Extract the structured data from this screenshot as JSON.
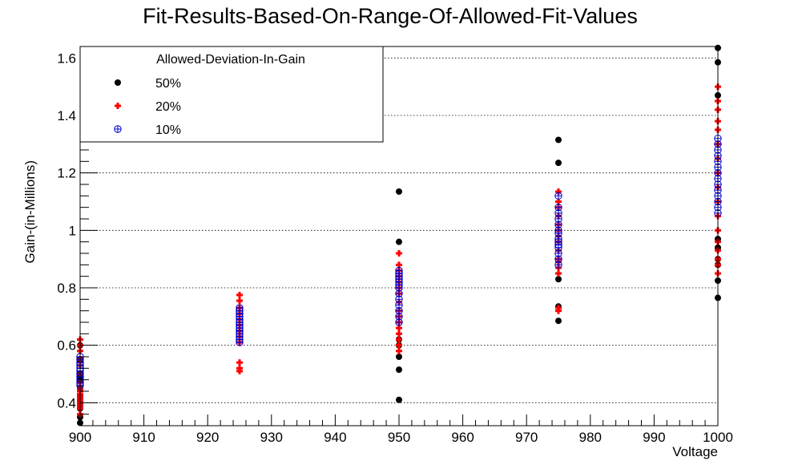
{
  "chart_data": {
    "type": "scatter",
    "title": "Fit-Results-Based-On-Range-Of-Allowed-Fit-Values",
    "xlabel": "Voltage",
    "ylabel": "Gain-(in-Millions)",
    "xlim": [
      900,
      1000
    ],
    "ylim": [
      0.32,
      1.64
    ],
    "x_ticks": [
      900,
      910,
      920,
      930,
      940,
      950,
      960,
      970,
      980,
      990,
      1000
    ],
    "x_tick_labels": [
      "900",
      "910",
      "920",
      "930",
      "940",
      "950",
      "960",
      "970",
      "980",
      "990",
      "1000"
    ],
    "y_ticks": [
      0.4,
      0.6,
      0.8,
      1.0,
      1.2,
      1.4,
      1.6
    ],
    "y_tick_labels": [
      "0.4",
      "0.6",
      "0.8",
      "1",
      "1.2",
      "1.4",
      "1.6"
    ],
    "grid": "horizontal",
    "legend": {
      "title": "Allowed-Deviation-In-Gain",
      "placement": "top-left"
    },
    "series": [
      {
        "name": "50%",
        "color": "#000000",
        "marker": "filled-circle",
        "points": [
          [
            900,
            0.33
          ],
          [
            900,
            0.35
          ],
          [
            900,
            0.38
          ],
          [
            900,
            0.4
          ],
          [
            900,
            0.42
          ],
          [
            900,
            0.45
          ],
          [
            900,
            0.48
          ],
          [
            900,
            0.5
          ],
          [
            900,
            0.55
          ],
          [
            900,
            0.6
          ],
          [
            950,
            0.41
          ],
          [
            950,
            0.515
          ],
          [
            950,
            0.56
          ],
          [
            950,
            0.6
          ],
          [
            950,
            0.62
          ],
          [
            950,
            0.96
          ],
          [
            950,
            1.135
          ],
          [
            975,
            0.685
          ],
          [
            975,
            0.735
          ],
          [
            975,
            0.83
          ],
          [
            975,
            1.235
          ],
          [
            975,
            1.315
          ],
          [
            1000,
            0.765
          ],
          [
            1000,
            0.825
          ],
          [
            1000,
            0.88
          ],
          [
            1000,
            0.9
          ],
          [
            1000,
            0.94
          ],
          [
            1000,
            0.97
          ],
          [
            1000,
            1.47
          ],
          [
            1000,
            1.585
          ],
          [
            1000,
            1.635
          ]
        ]
      },
      {
        "name": "20%",
        "color": "#ff0000",
        "marker": "plus",
        "points": [
          [
            900,
            0.36
          ],
          [
            900,
            0.38
          ],
          [
            900,
            0.39
          ],
          [
            900,
            0.4
          ],
          [
            900,
            0.41
          ],
          [
            900,
            0.42
          ],
          [
            900,
            0.43
          ],
          [
            900,
            0.44
          ],
          [
            900,
            0.45
          ],
          [
            900,
            0.47
          ],
          [
            900,
            0.5
          ],
          [
            900,
            0.53
          ],
          [
            900,
            0.55
          ],
          [
            900,
            0.58
          ],
          [
            900,
            0.6
          ],
          [
            900,
            0.62
          ],
          [
            925,
            0.51
          ],
          [
            925,
            0.52
          ],
          [
            925,
            0.54
          ],
          [
            925,
            0.61
          ],
          [
            925,
            0.63
          ],
          [
            925,
            0.65
          ],
          [
            925,
            0.67
          ],
          [
            925,
            0.69
          ],
          [
            925,
            0.71
          ],
          [
            925,
            0.73
          ],
          [
            925,
            0.755
          ],
          [
            925,
            0.775
          ],
          [
            950,
            0.58
          ],
          [
            950,
            0.6
          ],
          [
            950,
            0.62
          ],
          [
            950,
            0.64
          ],
          [
            950,
            0.66
          ],
          [
            950,
            0.68
          ],
          [
            950,
            0.7
          ],
          [
            950,
            0.72
          ],
          [
            950,
            0.75
          ],
          [
            950,
            0.78
          ],
          [
            950,
            0.8
          ],
          [
            950,
            0.82
          ],
          [
            950,
            0.84
          ],
          [
            950,
            0.86
          ],
          [
            950,
            0.88
          ],
          [
            950,
            0.92
          ],
          [
            975,
            0.72
          ],
          [
            975,
            0.73
          ],
          [
            975,
            0.85
          ],
          [
            975,
            0.87
          ],
          [
            975,
            0.89
          ],
          [
            975,
            0.9
          ],
          [
            975,
            0.93
          ],
          [
            975,
            0.96
          ],
          [
            975,
            0.98
          ],
          [
            975,
            1.0
          ],
          [
            975,
            1.02
          ],
          [
            975,
            1.05
          ],
          [
            975,
            1.08
          ],
          [
            975,
            1.1
          ],
          [
            975,
            1.135
          ],
          [
            1000,
            0.85
          ],
          [
            1000,
            0.88
          ],
          [
            1000,
            0.9
          ],
          [
            1000,
            0.93
          ],
          [
            1000,
            0.96
          ],
          [
            1000,
            1.0
          ],
          [
            1000,
            1.05
          ],
          [
            1000,
            1.1
          ],
          [
            1000,
            1.15
          ],
          [
            1000,
            1.2
          ],
          [
            1000,
            1.25
          ],
          [
            1000,
            1.3
          ],
          [
            1000,
            1.35
          ],
          [
            1000,
            1.38
          ],
          [
            1000,
            1.42
          ],
          [
            1000,
            1.45
          ],
          [
            1000,
            1.5
          ]
        ]
      },
      {
        "name": "10%",
        "color": "#0000cc",
        "marker": "circle-plus",
        "points": [
          [
            900,
            0.46
          ],
          [
            900,
            0.47
          ],
          [
            900,
            0.48
          ],
          [
            900,
            0.49
          ],
          [
            900,
            0.5
          ],
          [
            900,
            0.51
          ],
          [
            900,
            0.52
          ],
          [
            900,
            0.53
          ],
          [
            900,
            0.54
          ],
          [
            900,
            0.55
          ],
          [
            900,
            0.56
          ],
          [
            925,
            0.61
          ],
          [
            925,
            0.62
          ],
          [
            925,
            0.63
          ],
          [
            925,
            0.64
          ],
          [
            925,
            0.65
          ],
          [
            925,
            0.66
          ],
          [
            925,
            0.67
          ],
          [
            925,
            0.68
          ],
          [
            925,
            0.69
          ],
          [
            925,
            0.7
          ],
          [
            925,
            0.71
          ],
          [
            925,
            0.72
          ],
          [
            925,
            0.73
          ],
          [
            950,
            0.68
          ],
          [
            950,
            0.7
          ],
          [
            950,
            0.72
          ],
          [
            950,
            0.74
          ],
          [
            950,
            0.76
          ],
          [
            950,
            0.78
          ],
          [
            950,
            0.8
          ],
          [
            950,
            0.81
          ],
          [
            950,
            0.82
          ],
          [
            950,
            0.83
          ],
          [
            950,
            0.84
          ],
          [
            950,
            0.85
          ],
          [
            950,
            0.86
          ],
          [
            975,
            0.88
          ],
          [
            975,
            0.9
          ],
          [
            975,
            0.92
          ],
          [
            975,
            0.94
          ],
          [
            975,
            0.95
          ],
          [
            975,
            0.96
          ],
          [
            975,
            0.97
          ],
          [
            975,
            0.99
          ],
          [
            975,
            1.0
          ],
          [
            975,
            1.02
          ],
          [
            975,
            1.04
          ],
          [
            975,
            1.06
          ],
          [
            975,
            1.08
          ],
          [
            975,
            1.12
          ],
          [
            1000,
            1.06
          ],
          [
            1000,
            1.08
          ],
          [
            1000,
            1.1
          ],
          [
            1000,
            1.12
          ],
          [
            1000,
            1.14
          ],
          [
            1000,
            1.16
          ],
          [
            1000,
            1.18
          ],
          [
            1000,
            1.2
          ],
          [
            1000,
            1.22
          ],
          [
            1000,
            1.24
          ],
          [
            1000,
            1.26
          ],
          [
            1000,
            1.28
          ],
          [
            1000,
            1.3
          ],
          [
            1000,
            1.32
          ]
        ]
      }
    ]
  }
}
